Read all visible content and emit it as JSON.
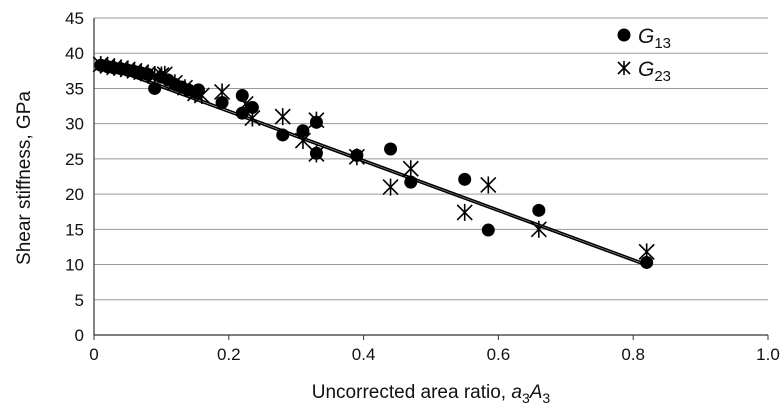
{
  "chart_data": {
    "type": "scatter",
    "xlabel": "Uncorrected area ratio, ",
    "xlabel_math": {
      "a": "a",
      "a_sub": "3",
      "b": "A",
      "b_sub": "3"
    },
    "ylabel": "Shear stiffness, GPa",
    "xlim": [
      0,
      1.0
    ],
    "ylim": [
      0,
      45
    ],
    "xticks": [
      0,
      0.2,
      0.4,
      0.6,
      0.8,
      1.0
    ],
    "xtick_labels": [
      "0",
      "0.2",
      "0.4",
      "0.6",
      "0.8",
      "1.0"
    ],
    "yticks": [
      0,
      5,
      10,
      15,
      20,
      25,
      30,
      35,
      40,
      45
    ],
    "ytick_labels": [
      "0",
      "5",
      "10",
      "15",
      "20",
      "25",
      "30",
      "35",
      "40",
      "45"
    ],
    "grid": "horizontal",
    "legend_position": "top-right",
    "series": [
      {
        "name": "G13",
        "name_base": "G",
        "name_sub": "13",
        "marker": "circle",
        "color": "#000000",
        "points": [
          [
            0.01,
            38.3
          ],
          [
            0.02,
            38.1
          ],
          [
            0.03,
            37.9
          ],
          [
            0.04,
            37.8
          ],
          [
            0.05,
            37.6
          ],
          [
            0.06,
            37.4
          ],
          [
            0.07,
            37.2
          ],
          [
            0.08,
            37.0
          ],
          [
            0.09,
            35.0
          ],
          [
            0.1,
            36.6
          ],
          [
            0.11,
            36.2
          ],
          [
            0.12,
            35.6
          ],
          [
            0.13,
            35.2
          ],
          [
            0.14,
            34.8
          ],
          [
            0.15,
            34.5
          ],
          [
            0.155,
            34.8
          ],
          [
            0.19,
            33.0
          ],
          [
            0.22,
            34.0
          ],
          [
            0.22,
            31.5
          ],
          [
            0.235,
            32.3
          ],
          [
            0.28,
            28.4
          ],
          [
            0.31,
            29.0
          ],
          [
            0.33,
            30.2
          ],
          [
            0.33,
            25.8
          ],
          [
            0.39,
            25.5
          ],
          [
            0.44,
            26.4
          ],
          [
            0.47,
            21.7
          ],
          [
            0.55,
            22.1
          ],
          [
            0.585,
            14.9
          ],
          [
            0.66,
            17.7
          ],
          [
            0.82,
            10.3
          ]
        ]
      },
      {
        "name": "G23",
        "name_base": "G",
        "name_sub": "23",
        "marker": "star",
        "color": "#000000",
        "points": [
          [
            0.01,
            38.4
          ],
          [
            0.02,
            38.2
          ],
          [
            0.03,
            38.0
          ],
          [
            0.04,
            37.9
          ],
          [
            0.05,
            37.7
          ],
          [
            0.06,
            37.5
          ],
          [
            0.07,
            37.3
          ],
          [
            0.08,
            37.1
          ],
          [
            0.09,
            36.8
          ],
          [
            0.1,
            36.9
          ],
          [
            0.105,
            37.0
          ],
          [
            0.12,
            35.8
          ],
          [
            0.135,
            35.1
          ],
          [
            0.15,
            34.3
          ],
          [
            0.16,
            34.0
          ],
          [
            0.19,
            34.5
          ],
          [
            0.225,
            32.8
          ],
          [
            0.235,
            30.8
          ],
          [
            0.28,
            31.0
          ],
          [
            0.31,
            27.6
          ],
          [
            0.33,
            30.5
          ],
          [
            0.33,
            25.7
          ],
          [
            0.39,
            25.3
          ],
          [
            0.44,
            21.0
          ],
          [
            0.47,
            23.6
          ],
          [
            0.55,
            17.4
          ],
          [
            0.585,
            21.3
          ],
          [
            0.66,
            15.0
          ],
          [
            0.82,
            11.8
          ]
        ]
      }
    ],
    "trendlines": [
      {
        "series": "G13",
        "from": [
          0.01,
          38.3
        ],
        "to": [
          0.82,
          9.8
        ]
      },
      {
        "series": "G23",
        "from": [
          0.01,
          38.6
        ],
        "to": [
          0.82,
          10.1
        ]
      }
    ]
  }
}
